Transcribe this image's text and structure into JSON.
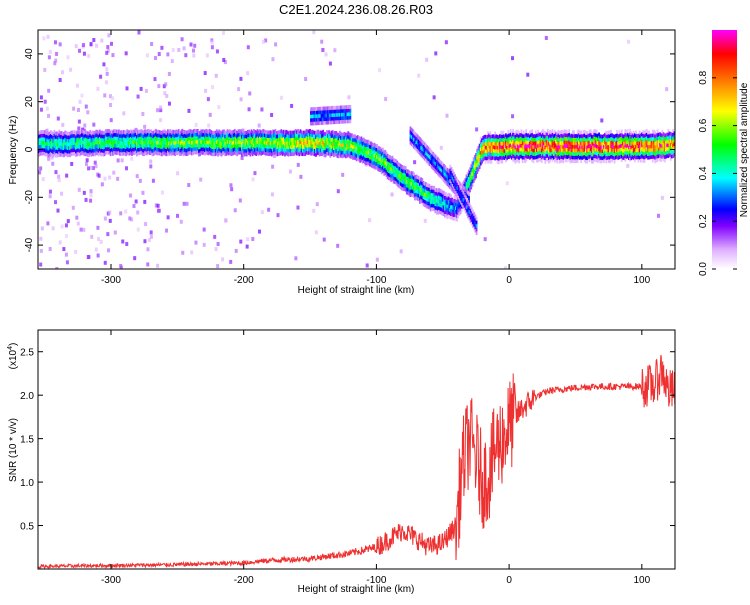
{
  "title": "C2E1.2024.236.08.26.R03",
  "chart_data": [
    {
      "type": "heatmap",
      "xlabel": "Height of straight line (km)",
      "ylabel": "Frequency (Hz)",
      "xlim": [
        -355,
        125
      ],
      "ylim": [
        -50,
        50
      ],
      "xticks": [
        -300,
        -200,
        -100,
        0,
        100
      ],
      "yticks": [
        -40,
        -20,
        0,
        20,
        40
      ],
      "colorbar": {
        "label": "Normalized spectral amplitude",
        "range": [
          0,
          1
        ],
        "ticks": [
          0.0,
          0.2,
          0.4,
          0.6,
          0.8
        ],
        "colormap": [
          "#ffffff",
          "#e0b0ff",
          "#8000ff",
          "#0000ff",
          "#00ffff",
          "#00ff00",
          "#ffff00",
          "#ff8000",
          "#ff0000",
          "#ff00ff"
        ]
      },
      "ridge": [
        {
          "x": -355,
          "f": 2.5,
          "amp": 0.45
        },
        {
          "x": -300,
          "f": 3,
          "amp": 0.5
        },
        {
          "x": -250,
          "f": 3,
          "amp": 0.55
        },
        {
          "x": -200,
          "f": 3,
          "amp": 0.6
        },
        {
          "x": -150,
          "f": 3,
          "amp": 0.7
        },
        {
          "x": -120,
          "f": 2,
          "amp": 0.6
        },
        {
          "x": -100,
          "f": -3,
          "amp": 0.55
        },
        {
          "x": -80,
          "f": -12,
          "amp": 0.55
        },
        {
          "x": -60,
          "f": -20,
          "amp": 0.5
        },
        {
          "x": -40,
          "f": -25,
          "amp": 0.3
        },
        {
          "x": -20,
          "f": 1,
          "amp": 0.8
        },
        {
          "x": 0,
          "f": 1.5,
          "amp": 0.9
        },
        {
          "x": 50,
          "f": 1.5,
          "amp": 0.95
        },
        {
          "x": 100,
          "f": 1.5,
          "amp": 0.9
        },
        {
          "x": 125,
          "f": 2,
          "amp": 0.8
        }
      ]
    },
    {
      "type": "line",
      "xlabel": "Height of straight line (km)",
      "ylabel": "SNR (10 * v/v)",
      "yscale_label": "(x10",
      "yscale_exp": "4",
      "xlim": [
        -355,
        125
      ],
      "ylim": [
        0,
        2.75
      ],
      "xticks": [
        -300,
        -200,
        -100,
        0,
        100
      ],
      "yticks": [
        0.5,
        1.0,
        1.5,
        2.0,
        2.5
      ],
      "series": [
        {
          "color": "#ee3030",
          "x": [
            -355,
            -300,
            -250,
            -200,
            -180,
            -150,
            -120,
            -100,
            -90,
            -80,
            -70,
            -60,
            -50,
            -40,
            -35,
            -30,
            -25,
            -20,
            -15,
            -10,
            -5,
            0,
            10,
            20,
            30,
            40,
            60,
            80,
            100,
            110,
            115,
            120,
            125
          ],
          "y": [
            0.03,
            0.04,
            0.05,
            0.07,
            0.1,
            0.12,
            0.18,
            0.25,
            0.35,
            0.45,
            0.35,
            0.25,
            0.3,
            0.5,
            1.2,
            1.5,
            1.3,
            1.0,
            1.1,
            1.4,
            1.5,
            1.65,
            1.85,
            1.98,
            2.05,
            2.07,
            2.1,
            2.1,
            2.1,
            2.12,
            2.3,
            2.05,
            2.05
          ]
        }
      ]
    }
  ]
}
